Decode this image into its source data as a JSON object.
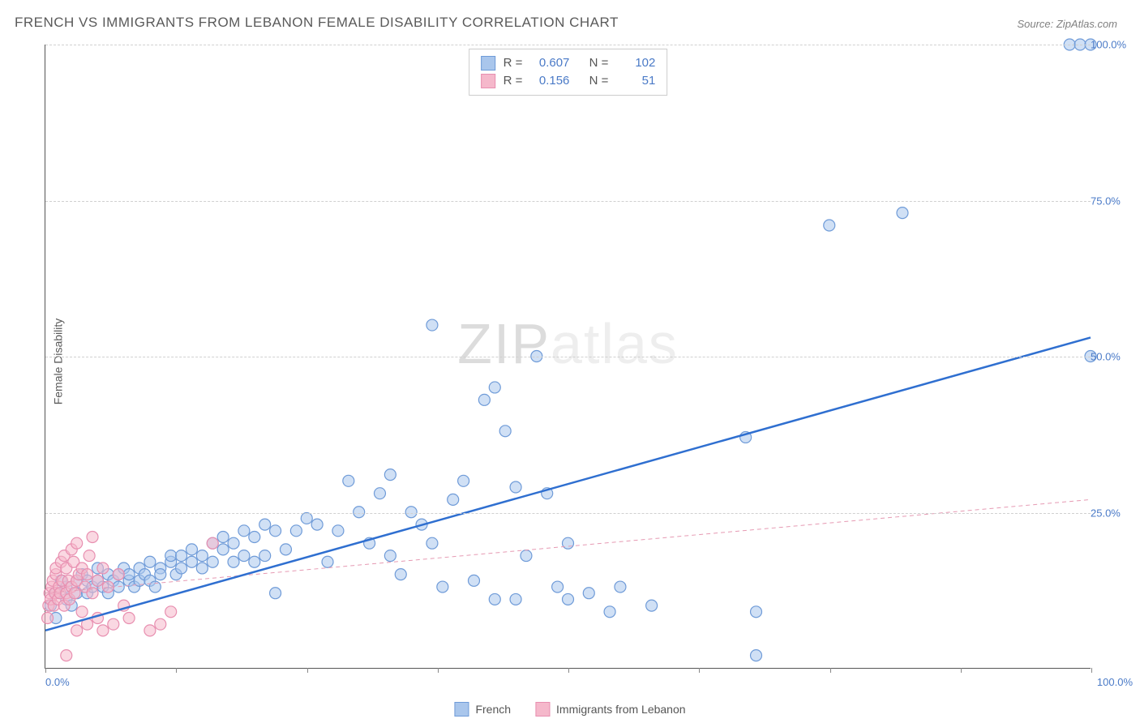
{
  "title": "FRENCH VS IMMIGRANTS FROM LEBANON FEMALE DISABILITY CORRELATION CHART",
  "source": "Source: ZipAtlas.com",
  "ylabel": "Female Disability",
  "watermark": {
    "zip": "ZIP",
    "atlas": "atlas"
  },
  "chart": {
    "type": "scatter",
    "xlim": [
      0,
      100
    ],
    "ylim": [
      0,
      100
    ],
    "x_ticks_pct": [
      0,
      12.5,
      25,
      37.5,
      50,
      62.5,
      75,
      87.5,
      100
    ],
    "y_gridlines": [
      25,
      50,
      75,
      100
    ],
    "y_tick_labels": [
      "25.0%",
      "50.0%",
      "75.0%",
      "100.0%"
    ],
    "x_tick_left": "0.0%",
    "x_tick_right": "100.0%",
    "background_color": "#ffffff",
    "grid_color": "#d0d0d0",
    "axis_color": "#555555",
    "marker_radius": 7,
    "marker_stroke_width": 1.2,
    "trend_line_width_primary": 2.5,
    "trend_line_width_secondary": 1,
    "series": [
      {
        "name": "French",
        "fill_color": "#a9c6ec",
        "stroke_color": "#6f9bd8",
        "fill_opacity": 0.55,
        "trend_color": "#2f6fd0",
        "trend_dash": "none",
        "trend": {
          "x1": 0,
          "y1": 6,
          "x2": 100,
          "y2": 53
        },
        "R": "0.607",
        "N": "102",
        "points": [
          [
            0.5,
            10
          ],
          [
            1,
            12
          ],
          [
            1,
            8
          ],
          [
            1.5,
            14
          ],
          [
            2,
            11
          ],
          [
            2,
            13
          ],
          [
            2.5,
            10
          ],
          [
            3,
            12
          ],
          [
            3,
            14
          ],
          [
            3.5,
            15
          ],
          [
            4,
            12
          ],
          [
            4,
            14
          ],
          [
            4.5,
            13
          ],
          [
            5,
            14
          ],
          [
            5,
            16
          ],
          [
            5.5,
            13
          ],
          [
            6,
            15
          ],
          [
            6,
            12
          ],
          [
            6.5,
            14
          ],
          [
            7,
            15
          ],
          [
            7,
            13
          ],
          [
            7.5,
            16
          ],
          [
            8,
            14
          ],
          [
            8,
            15
          ],
          [
            8.5,
            13
          ],
          [
            9,
            16
          ],
          [
            9,
            14
          ],
          [
            9.5,
            15
          ],
          [
            10,
            14
          ],
          [
            10,
            17
          ],
          [
            10.5,
            13
          ],
          [
            11,
            16
          ],
          [
            11,
            15
          ],
          [
            12,
            17
          ],
          [
            12,
            18
          ],
          [
            12.5,
            15
          ],
          [
            13,
            16
          ],
          [
            13,
            18
          ],
          [
            14,
            19
          ],
          [
            14,
            17
          ],
          [
            15,
            16
          ],
          [
            15,
            18
          ],
          [
            16,
            20
          ],
          [
            16,
            17
          ],
          [
            17,
            19
          ],
          [
            17,
            21
          ],
          [
            18,
            17
          ],
          [
            18,
            20
          ],
          [
            19,
            22
          ],
          [
            19,
            18
          ],
          [
            20,
            17
          ],
          [
            20,
            21
          ],
          [
            21,
            23
          ],
          [
            21,
            18
          ],
          [
            22,
            22
          ],
          [
            22,
            12
          ],
          [
            23,
            19
          ],
          [
            24,
            22
          ],
          [
            25,
            24
          ],
          [
            26,
            23
          ],
          [
            27,
            17
          ],
          [
            28,
            22
          ],
          [
            29,
            30
          ],
          [
            30,
            25
          ],
          [
            31,
            20
          ],
          [
            32,
            28
          ],
          [
            33,
            31
          ],
          [
            33,
            18
          ],
          [
            34,
            15
          ],
          [
            35,
            25
          ],
          [
            36,
            23
          ],
          [
            37,
            20
          ],
          [
            37,
            55
          ],
          [
            38,
            13
          ],
          [
            39,
            27
          ],
          [
            40,
            30
          ],
          [
            41,
            14
          ],
          [
            42,
            43
          ],
          [
            43,
            11
          ],
          [
            43,
            45
          ],
          [
            44,
            38
          ],
          [
            45,
            29
          ],
          [
            45,
            11
          ],
          [
            46,
            18
          ],
          [
            47,
            50
          ],
          [
            48,
            28
          ],
          [
            49,
            13
          ],
          [
            50,
            20
          ],
          [
            50,
            11
          ],
          [
            52,
            12
          ],
          [
            54,
            9
          ],
          [
            55,
            13
          ],
          [
            58,
            10
          ],
          [
            67,
            37
          ],
          [
            68,
            9
          ],
          [
            68,
            2
          ],
          [
            75,
            71
          ],
          [
            82,
            73
          ],
          [
            98,
            100
          ],
          [
            99,
            100
          ],
          [
            100,
            100
          ],
          [
            100,
            50
          ]
        ]
      },
      {
        "name": "Immigrants from Lebanon",
        "fill_color": "#f5b8cb",
        "stroke_color": "#e88fb0",
        "fill_opacity": 0.55,
        "trend_color": "#e69ab3",
        "trend_dash": "5,4",
        "trend": {
          "x1": 0,
          "y1": 12,
          "x2": 100,
          "y2": 27
        },
        "R": "0.156",
        "N": "51",
        "points": [
          [
            0.2,
            8
          ],
          [
            0.3,
            10
          ],
          [
            0.4,
            12
          ],
          [
            0.5,
            11
          ],
          [
            0.6,
            13
          ],
          [
            0.7,
            14
          ],
          [
            0.8,
            10
          ],
          [
            0.9,
            12
          ],
          [
            1,
            15
          ],
          [
            1,
            16
          ],
          [
            1.2,
            11
          ],
          [
            1.3,
            13
          ],
          [
            1.4,
            12
          ],
          [
            1.5,
            17
          ],
          [
            1.6,
            14
          ],
          [
            1.8,
            18
          ],
          [
            1.8,
            10
          ],
          [
            2,
            12
          ],
          [
            2,
            16
          ],
          [
            2.2,
            14
          ],
          [
            2.3,
            11
          ],
          [
            2.5,
            13
          ],
          [
            2.5,
            19
          ],
          [
            2.7,
            17
          ],
          [
            2.8,
            12
          ],
          [
            3,
            14
          ],
          [
            3,
            20
          ],
          [
            3,
            6
          ],
          [
            3.2,
            15
          ],
          [
            3.5,
            16
          ],
          [
            3.5,
            9
          ],
          [
            3.8,
            13
          ],
          [
            4,
            15
          ],
          [
            4,
            7
          ],
          [
            4.2,
            18
          ],
          [
            4.5,
            12
          ],
          [
            4.5,
            21
          ],
          [
            5,
            14
          ],
          [
            5,
            8
          ],
          [
            5.5,
            16
          ],
          [
            5.5,
            6
          ],
          [
            6,
            13
          ],
          [
            6.5,
            7
          ],
          [
            7,
            15
          ],
          [
            7.5,
            10
          ],
          [
            8,
            8
          ],
          [
            10,
            6
          ],
          [
            11,
            7
          ],
          [
            12,
            9
          ],
          [
            16,
            20
          ],
          [
            2,
            2
          ]
        ]
      }
    ]
  },
  "top_legend": {
    "rows": [
      {
        "swatch_fill": "#a9c6ec",
        "swatch_border": "#6f9bd8",
        "R_label": "R =",
        "R": "0.607",
        "N_label": "N =",
        "N": "102"
      },
      {
        "swatch_fill": "#f5b8cb",
        "swatch_border": "#e88fb0",
        "R_label": "R =",
        "R": "0.156",
        "N_label": "N =",
        "N": "51"
      }
    ]
  },
  "bottom_legend": {
    "items": [
      {
        "swatch_fill": "#a9c6ec",
        "swatch_border": "#6f9bd8",
        "label": "French"
      },
      {
        "swatch_fill": "#f5b8cb",
        "swatch_border": "#e88fb0",
        "label": "Immigrants from Lebanon"
      }
    ]
  }
}
